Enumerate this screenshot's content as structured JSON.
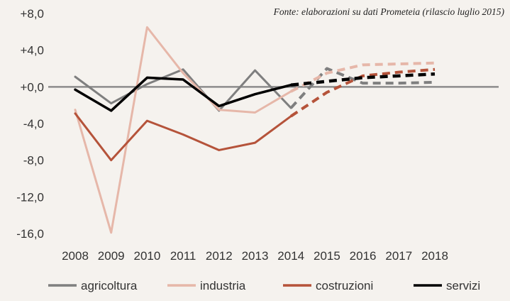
{
  "chart_data": {
    "type": "line",
    "source": "Fonte: elaborazioni su dati Prometeia (rilascio luglio 2015)",
    "x": [
      "2008",
      "2009",
      "2010",
      "2011",
      "2012",
      "2013",
      "2014",
      "2015",
      "2016",
      "2017",
      "2018"
    ],
    "historical_end": "2014",
    "ylim": [
      -16,
      8
    ],
    "yticks": [
      8,
      4,
      0,
      -4,
      -8,
      -12,
      -16
    ],
    "ytick_labels": [
      "+8,0",
      "+4,0",
      "+0,0",
      "-4,0",
      "-8,0",
      "-12,0",
      "-16,0"
    ],
    "zero_line": true,
    "grid": false,
    "legend_position": "bottom",
    "series": [
      {
        "name": "agricoltura",
        "color": "#7f7f7f",
        "values": [
          1.1,
          -1.8,
          0.3,
          1.9,
          -2.6,
          1.8,
          -2.3,
          2.0,
          0.4,
          0.4,
          0.5
        ]
      },
      {
        "name": "industria",
        "color": "#e6b7a9",
        "values": [
          -2.5,
          -15.9,
          6.5,
          1.5,
          -2.5,
          -2.8,
          -0.5,
          1.5,
          2.4,
          2.5,
          2.6
        ]
      },
      {
        "name": "costruzioni",
        "color": "#b5533a",
        "values": [
          -2.9,
          -8.0,
          -3.7,
          -5.2,
          -6.9,
          -6.1,
          -3.2,
          -0.6,
          1.2,
          1.6,
          1.9
        ]
      },
      {
        "name": "servizi",
        "color": "#000000",
        "values": [
          -0.3,
          -2.6,
          1.0,
          0.8,
          -2.1,
          -0.8,
          0.2,
          0.6,
          1.0,
          1.2,
          1.4
        ]
      }
    ]
  }
}
